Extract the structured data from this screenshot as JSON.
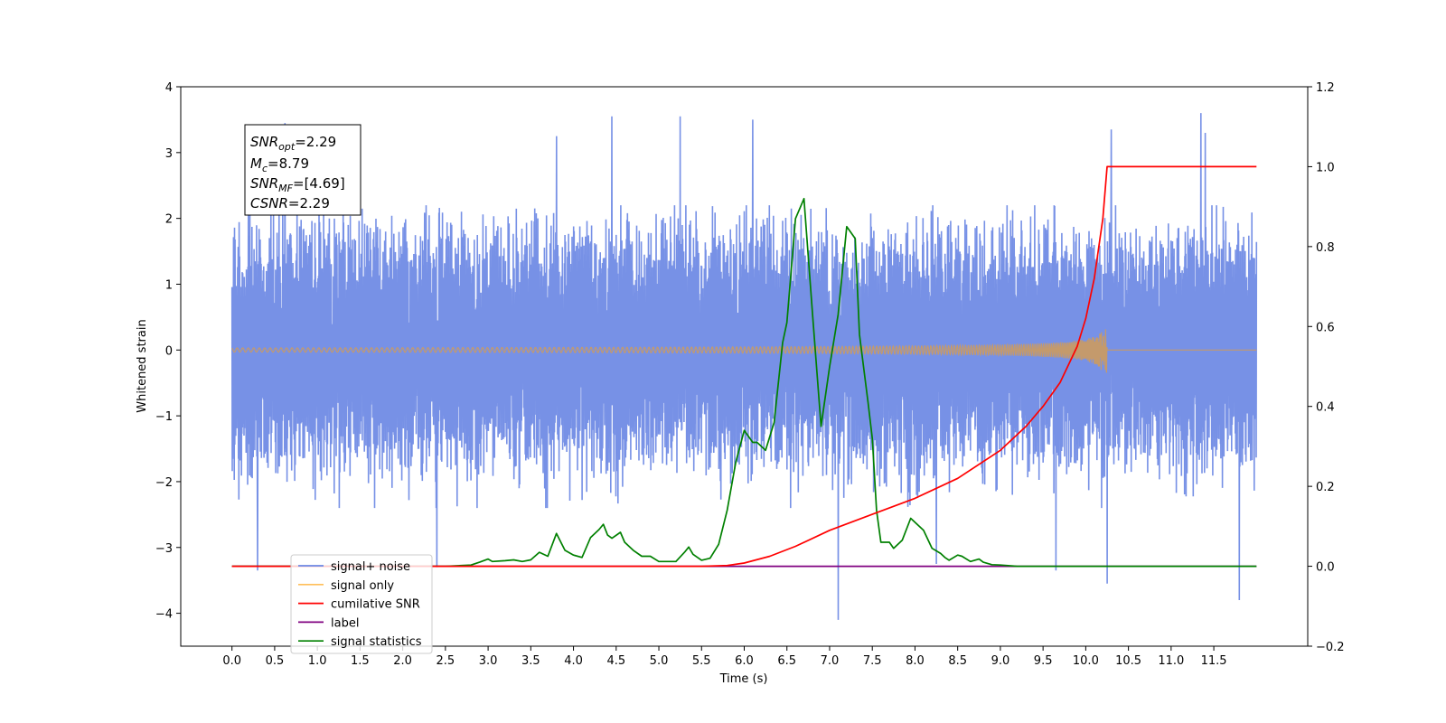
{
  "chart_data": {
    "type": "line",
    "xlabel": "Time (s)",
    "ylabel": "Whitened strain",
    "xlim": [
      -0.6,
      12.6
    ],
    "ylim": [
      -4.5,
      4.0
    ],
    "y2lim": [
      -0.2,
      1.2
    ],
    "x_ticks": [
      0.0,
      0.5,
      1.0,
      1.5,
      2.0,
      2.5,
      3.0,
      3.5,
      4.0,
      4.5,
      5.0,
      5.5,
      6.0,
      6.5,
      7.0,
      7.5,
      8.0,
      8.5,
      9.0,
      9.5,
      10.0,
      10.5,
      11.0,
      11.5
    ],
    "x_tick_labels": [
      "0.0",
      "0.5",
      "1.0",
      "1.5",
      "2.0",
      "2.5",
      "3.0",
      "3.5",
      "4.0",
      "4.5",
      "5.0",
      "5.5",
      "6.0",
      "6.5",
      "7.0",
      "7.5",
      "8.0",
      "8.5",
      "9.0",
      "9.5",
      "10.0",
      "10.5",
      "11.0",
      "11.5"
    ],
    "y_ticks": [
      -4,
      -3,
      -2,
      -1,
      0,
      1,
      2,
      3,
      4
    ],
    "y_tick_labels": [
      "−4",
      "−3",
      "−2",
      "−1",
      "0",
      "1",
      "2",
      "3",
      "4"
    ],
    "y2_ticks": [
      -0.2,
      0.0,
      0.2,
      0.4,
      0.6,
      0.8,
      1.0,
      1.2
    ],
    "y2_tick_labels": [
      "−0.2",
      "0.0",
      "0.2",
      "0.4",
      "0.6",
      "0.8",
      "1.0",
      "1.2"
    ],
    "grid": false,
    "legend_position": "lower-left",
    "info_box": {
      "line1": {
        "main": "SNR",
        "sub": "opt",
        "rest": "=2.29"
      },
      "line2": {
        "main": "M",
        "sub": "c",
        "rest": "=8.79"
      },
      "line3": {
        "main": "SNR",
        "sub": "MF",
        "rest": "=[4.69]"
      },
      "line4": {
        "main": "CSNR",
        "sub": "",
        "rest": "=2.29"
      }
    },
    "series": [
      {
        "name": "signal+ noise",
        "axis": "left",
        "color": "#6b88e4",
        "kind": "noise",
        "x_range": [
          0.0,
          12.0
        ],
        "typical_band": [
          -1.8,
          1.9
        ],
        "max": 3.6,
        "min": -4.1
      },
      {
        "name": "signal only",
        "axis": "left",
        "color": "#ffbf5a",
        "kind": "chirp",
        "x_range": [
          0.0,
          12.0
        ],
        "merger_time": 10.25,
        "peak_amplitude": 0.35
      },
      {
        "name": "cumilative SNR",
        "axis": "right",
        "color": "#ff0000",
        "points": [
          [
            0.0,
            0.0
          ],
          [
            5.0,
            0.0
          ],
          [
            5.5,
            0.0
          ],
          [
            5.8,
            0.002
          ],
          [
            6.0,
            0.008
          ],
          [
            6.3,
            0.025
          ],
          [
            6.6,
            0.05
          ],
          [
            7.0,
            0.09
          ],
          [
            7.5,
            0.13
          ],
          [
            8.0,
            0.17
          ],
          [
            8.5,
            0.22
          ],
          [
            9.0,
            0.29
          ],
          [
            9.3,
            0.35
          ],
          [
            9.5,
            0.4
          ],
          [
            9.7,
            0.46
          ],
          [
            9.9,
            0.55
          ],
          [
            10.0,
            0.62
          ],
          [
            10.1,
            0.72
          ],
          [
            10.2,
            0.87
          ],
          [
            10.25,
            1.0
          ],
          [
            12.0,
            1.0
          ]
        ]
      },
      {
        "name": "label",
        "axis": "right",
        "color": "#800080",
        "points": [
          [
            0.0,
            0.0
          ],
          [
            12.0,
            0.0
          ]
        ]
      },
      {
        "name": "signal statistics",
        "axis": "right",
        "color": "#008000",
        "points": [
          [
            0.0,
            0.0
          ],
          [
            2.5,
            0.0
          ],
          [
            2.8,
            0.003
          ],
          [
            2.9,
            0.01
          ],
          [
            3.0,
            0.018
          ],
          [
            3.05,
            0.012
          ],
          [
            3.2,
            0.014
          ],
          [
            3.3,
            0.016
          ],
          [
            3.4,
            0.012
          ],
          [
            3.5,
            0.016
          ],
          [
            3.6,
            0.035
          ],
          [
            3.7,
            0.025
          ],
          [
            3.8,
            0.082
          ],
          [
            3.9,
            0.04
          ],
          [
            4.0,
            0.028
          ],
          [
            4.1,
            0.022
          ],
          [
            4.2,
            0.072
          ],
          [
            4.3,
            0.092
          ],
          [
            4.35,
            0.105
          ],
          [
            4.4,
            0.078
          ],
          [
            4.45,
            0.07
          ],
          [
            4.55,
            0.085
          ],
          [
            4.6,
            0.06
          ],
          [
            4.7,
            0.04
          ],
          [
            4.8,
            0.025
          ],
          [
            4.9,
            0.025
          ],
          [
            5.0,
            0.012
          ],
          [
            5.1,
            0.012
          ],
          [
            5.2,
            0.012
          ],
          [
            5.3,
            0.035
          ],
          [
            5.35,
            0.048
          ],
          [
            5.4,
            0.03
          ],
          [
            5.5,
            0.015
          ],
          [
            5.6,
            0.02
          ],
          [
            5.7,
            0.055
          ],
          [
            5.8,
            0.14
          ],
          [
            5.9,
            0.26
          ],
          [
            6.0,
            0.34
          ],
          [
            6.1,
            0.31
          ],
          [
            6.15,
            0.31
          ],
          [
            6.25,
            0.29
          ],
          [
            6.35,
            0.36
          ],
          [
            6.45,
            0.56
          ],
          [
            6.5,
            0.61
          ],
          [
            6.6,
            0.87
          ],
          [
            6.7,
            0.92
          ],
          [
            6.8,
            0.63
          ],
          [
            6.9,
            0.35
          ],
          [
            7.0,
            0.5
          ],
          [
            7.1,
            0.63
          ],
          [
            7.2,
            0.85
          ],
          [
            7.3,
            0.82
          ],
          [
            7.35,
            0.58
          ],
          [
            7.45,
            0.41
          ],
          [
            7.5,
            0.32
          ],
          [
            7.55,
            0.14
          ],
          [
            7.6,
            0.06
          ],
          [
            7.7,
            0.06
          ],
          [
            7.75,
            0.045
          ],
          [
            7.85,
            0.065
          ],
          [
            7.95,
            0.12
          ],
          [
            8.05,
            0.1
          ],
          [
            8.1,
            0.09
          ],
          [
            8.2,
            0.045
          ],
          [
            8.3,
            0.032
          ],
          [
            8.35,
            0.022
          ],
          [
            8.4,
            0.015
          ],
          [
            8.5,
            0.028
          ],
          [
            8.55,
            0.025
          ],
          [
            8.65,
            0.012
          ],
          [
            8.75,
            0.018
          ],
          [
            8.8,
            0.01
          ],
          [
            8.9,
            0.004
          ],
          [
            9.0,
            0.003
          ],
          [
            9.2,
            0.0
          ],
          [
            12.0,
            0.0
          ]
        ]
      }
    ]
  }
}
